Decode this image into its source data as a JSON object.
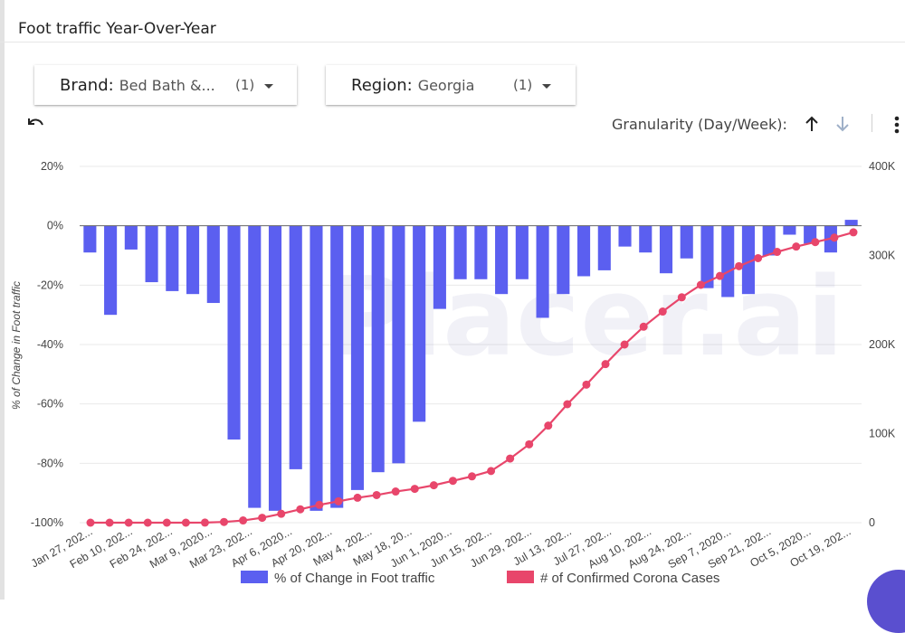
{
  "header": {
    "title": "Foot traffic Year-Over-Year"
  },
  "filters": [
    {
      "label": "Brand:",
      "value": "Bed Bath &...",
      "count": "(1)"
    },
    {
      "label": "Region:",
      "value": "Georgia",
      "count": "(1)"
    }
  ],
  "toolbar": {
    "granularity_label": "Granularity (Day/Week):"
  },
  "watermark": "Placer.ai",
  "colors": {
    "bars": "#5b5ff0",
    "line": "#e8466b",
    "grid": "#e9e9e9",
    "zero_line": "#666666"
  },
  "chart_data": {
    "type": "bar",
    "x_tick_labels": [
      "Jan 27, 202...",
      "Feb 10, 202...",
      "Feb 24, 202...",
      "Mar 9, 2020...",
      "Mar 23, 202...",
      "Apr 6, 2020...",
      "Apr 20, 202...",
      "May 4, 202...",
      "May 18, 20...",
      "Jun 1, 2020...",
      "Jun 15, 202...",
      "Jun 29, 202...",
      "Jul 13, 202...",
      "Jul 27, 202...",
      "Aug 10, 202...",
      "Aug 24, 202...",
      "Sep 7, 2020...",
      "Sep 21, 202...",
      "Oct 5, 2020...",
      "Oct 19, 202..."
    ],
    "ylabel_left": "% of Change in Foot traffic",
    "y_left_ticks": [
      "20%",
      "0%",
      "-20%",
      "-40%",
      "-60%",
      "-80%",
      "-100%"
    ],
    "y_left_range": [
      -100,
      20
    ],
    "y_right_ticks": [
      "400K",
      "300K",
      "200K",
      "100K",
      "0"
    ],
    "y_right_range": [
      0,
      400000
    ],
    "series": [
      {
        "name": "% of Change in Foot traffic",
        "type": "bar",
        "axis": "left",
        "values": [
          -9,
          -30,
          -8,
          -19,
          -22,
          -23,
          -26,
          -72,
          -95,
          -96,
          -82,
          -96,
          -95,
          -89,
          -83,
          -80,
          -66,
          -28,
          -18,
          -18,
          -23,
          -18,
          -31,
          -23,
          -17,
          -15,
          -7,
          -9,
          -16,
          -11,
          -21,
          -24,
          -23,
          -10,
          -3,
          -6,
          -9,
          2
        ]
      },
      {
        "name": "# of Confirmed Corona Cases",
        "type": "line",
        "axis": "right",
        "values": [
          0,
          0,
          0,
          0,
          0,
          0,
          100,
          800,
          2500,
          5500,
          10000,
          15000,
          20000,
          24000,
          28000,
          31000,
          35000,
          38000,
          42000,
          47000,
          52000,
          58000,
          72000,
          88000,
          109000,
          133000,
          155000,
          178000,
          200000,
          220000,
          237000,
          253000,
          267000,
          277000,
          288000,
          297000,
          304000,
          310000,
          315000,
          320000,
          326000
        ]
      }
    ],
    "legend_position": "bottom"
  }
}
